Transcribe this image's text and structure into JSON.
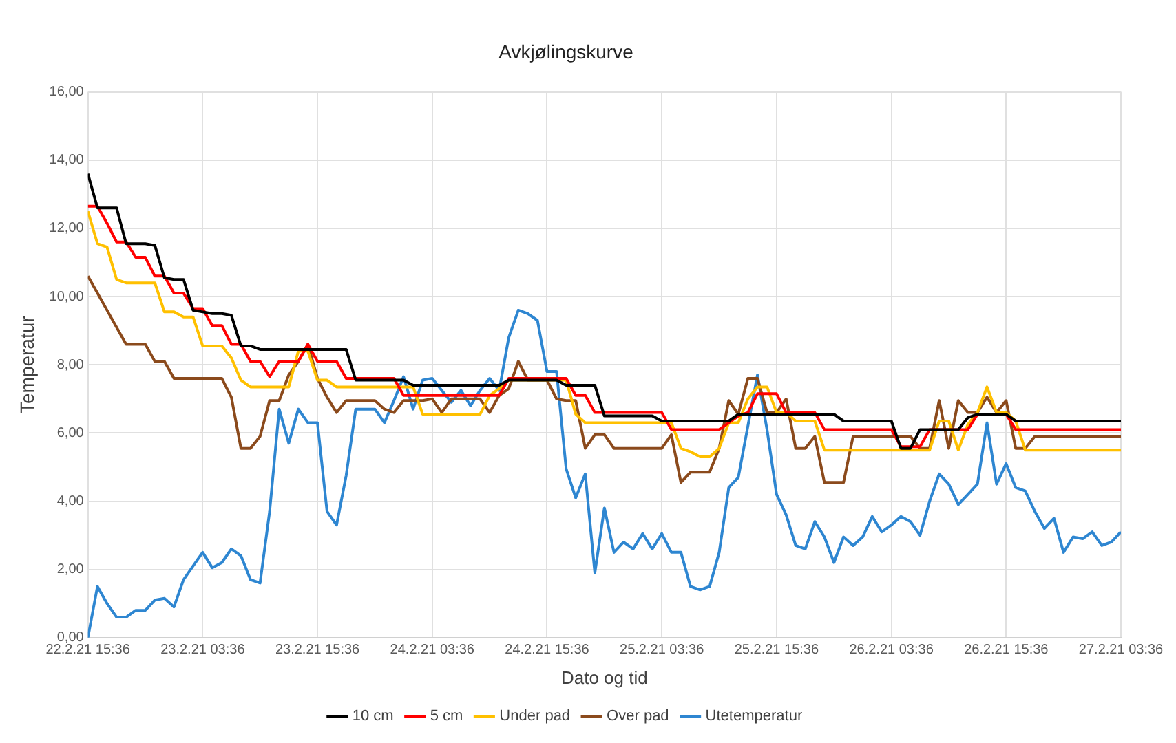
{
  "chart_data": {
    "type": "line",
    "title": "Avkjølingskurve",
    "xlabel": "Dato og tid",
    "ylabel": "Temperatur",
    "x": [
      "--02-22T15:36",
      "--02-22T16:36",
      "--02-22T17:36",
      "--02-22T18:36",
      "--02-22T19:36",
      "--02-22T20:36",
      "--02-22T21:36",
      "--02-22T22:36",
      "--02-22T23:36",
      "--02-23T00:36",
      "--02-23T01:36",
      "--02-23T02:36",
      "--02-23T03:36",
      "--02-23T04:36",
      "--02-23T05:36",
      "--02-23T06:36",
      "--02-23T07:36",
      "--02-23T08:36",
      "--02-23T09:36",
      "--02-23T10:36",
      "--02-23T11:36",
      "--02-23T12:36",
      "--02-23T13:36",
      "--02-23T14:36",
      "--02-23T15:36",
      "--02-23T16:36",
      "--02-23T17:36",
      "--02-23T18:36",
      "--02-23T19:36",
      "--02-23T20:36",
      "--02-23T21:36",
      "--02-23T22:36",
      "--02-23T23:36",
      "--02-24T00:36",
      "--02-24T01:36",
      "--02-24T02:36",
      "--02-24T03:36",
      "--02-24T04:36",
      "--02-24T05:36",
      "--02-24T06:36",
      "--02-24T07:36",
      "--02-24T08:36",
      "--02-24T09:36",
      "--02-24T10:36",
      "--02-24T11:36",
      "--02-24T12:36",
      "--02-24T13:36",
      "--02-24T14:36",
      "--02-24T15:36",
      "--02-24T16:36",
      "--02-24T17:36",
      "--02-24T18:36",
      "--02-24T19:36",
      "--02-24T20:36",
      "--02-24T21:36",
      "--02-24T22:36",
      "--02-24T23:36",
      "--02-25T00:36",
      "--02-25T01:36",
      "--02-25T02:36",
      "--02-25T03:36",
      "--02-25T04:36",
      "--02-25T05:36",
      "--02-25T06:36",
      "--02-25T07:36",
      "--02-25T08:36",
      "--02-25T09:36",
      "--02-25T10:36",
      "--02-25T11:36",
      "--02-25T12:36",
      "--02-25T13:36",
      "--02-25T14:36",
      "--02-25T15:36",
      "--02-25T16:36",
      "--02-25T17:36",
      "--02-25T18:36",
      "--02-25T19:36",
      "--02-25T20:36",
      "--02-25T21:36",
      "--02-25T22:36",
      "--02-25T23:36",
      "--02-26T00:36",
      "--02-26T01:36",
      "--02-26T02:36",
      "--02-26T03:36",
      "--02-26T04:36",
      "--02-26T05:36",
      "--02-26T06:36",
      "--02-26T07:36",
      "--02-26T08:36",
      "--02-26T09:36",
      "--02-26T10:36",
      "--02-26T11:36",
      "--02-26T12:36",
      "--02-26T13:36",
      "--02-26T14:36",
      "--02-26T15:36",
      "--02-26T16:36",
      "--02-26T17:36",
      "--02-26T18:36",
      "--02-26T19:36",
      "--02-26T20:36",
      "--02-26T21:36",
      "--02-26T22:36",
      "--02-26T23:36",
      "--02-27T00:36",
      "--02-27T01:36",
      "--02-27T02:36",
      "--02-27T03:36"
    ],
    "series": [
      {
        "name": "10 cm",
        "color": "#000000",
        "values": [
          13.6,
          12.6,
          12.6,
          12.6,
          11.55,
          11.55,
          11.55,
          11.5,
          10.55,
          10.5,
          10.5,
          9.6,
          9.55,
          9.5,
          9.5,
          9.45,
          8.55,
          8.55,
          8.45,
          8.45,
          8.45,
          8.45,
          8.45,
          8.45,
          8.45,
          8.45,
          8.45,
          8.45,
          7.55,
          7.55,
          7.55,
          7.55,
          7.55,
          7.55,
          7.4,
          7.4,
          7.4,
          7.4,
          7.4,
          7.4,
          7.4,
          7.4,
          7.4,
          7.4,
          7.55,
          7.55,
          7.55,
          7.55,
          7.55,
          7.55,
          7.4,
          7.4,
          7.4,
          7.4,
          6.5,
          6.5,
          6.5,
          6.5,
          6.5,
          6.5,
          6.35,
          6.35,
          6.35,
          6.35,
          6.35,
          6.35,
          6.35,
          6.35,
          6.55,
          6.55,
          6.55,
          6.55,
          6.55,
          6.55,
          6.55,
          6.55,
          6.55,
          6.55,
          6.55,
          6.35,
          6.35,
          6.35,
          6.35,
          6.35,
          6.35,
          5.55,
          5.55,
          6.1,
          6.1,
          6.1,
          6.1,
          6.1,
          6.45,
          6.55,
          6.55,
          6.55,
          6.55,
          6.35,
          6.35,
          6.35,
          6.35,
          6.35,
          6.35,
          6.35,
          6.35,
          6.35,
          6.35,
          6.35,
          6.35
        ]
      },
      {
        "name": "5 cm",
        "color": "#ff0000",
        "values": [
          12.65,
          12.65,
          12.15,
          11.6,
          11.6,
          11.15,
          11.15,
          10.6,
          10.6,
          10.1,
          10.1,
          9.65,
          9.65,
          9.15,
          9.15,
          8.6,
          8.6,
          8.1,
          8.1,
          7.65,
          8.1,
          8.1,
          8.1,
          8.6,
          8.1,
          8.1,
          8.1,
          7.6,
          7.6,
          7.6,
          7.6,
          7.6,
          7.6,
          7.1,
          7.1,
          7.1,
          7.1,
          7.1,
          7.1,
          7.1,
          7.1,
          7.1,
          7.1,
          7.1,
          7.6,
          7.6,
          7.6,
          7.6,
          7.6,
          7.6,
          7.6,
          7.1,
          7.1,
          6.6,
          6.6,
          6.6,
          6.6,
          6.6,
          6.6,
          6.6,
          6.6,
          6.1,
          6.1,
          6.1,
          6.1,
          6.1,
          6.1,
          6.3,
          6.5,
          6.6,
          7.15,
          7.15,
          7.15,
          6.6,
          6.6,
          6.6,
          6.6,
          6.1,
          6.1,
          6.1,
          6.1,
          6.1,
          6.1,
          6.1,
          6.1,
          5.6,
          5.6,
          5.6,
          6.1,
          6.1,
          6.1,
          6.1,
          6.1,
          6.55,
          6.55,
          6.55,
          6.55,
          6.1,
          6.1,
          6.1,
          6.1,
          6.1,
          6.1,
          6.1,
          6.1,
          6.1,
          6.1,
          6.1,
          6.1
        ]
      },
      {
        "name": "Under pad",
        "color": "#ffc000",
        "values": [
          12.5,
          11.55,
          11.45,
          10.5,
          10.4,
          10.4,
          10.4,
          10.4,
          9.55,
          9.55,
          9.4,
          9.4,
          8.55,
          8.55,
          8.55,
          8.2,
          7.55,
          7.35,
          7.35,
          7.35,
          7.35,
          7.35,
          8.4,
          8.4,
          7.55,
          7.55,
          7.35,
          7.35,
          7.35,
          7.35,
          7.35,
          7.35,
          7.35,
          7.35,
          7.35,
          6.55,
          6.55,
          6.55,
          6.55,
          6.55,
          6.55,
          6.55,
          7.1,
          7.3,
          7.55,
          7.55,
          7.55,
          7.55,
          7.55,
          7.55,
          7.55,
          6.55,
          6.3,
          6.3,
          6.3,
          6.3,
          6.3,
          6.3,
          6.3,
          6.3,
          6.3,
          6.3,
          5.55,
          5.45,
          5.3,
          5.3,
          5.55,
          6.3,
          6.3,
          7.0,
          7.35,
          7.35,
          6.6,
          6.6,
          6.35,
          6.35,
          6.35,
          5.5,
          5.5,
          5.5,
          5.5,
          5.5,
          5.5,
          5.5,
          5.5,
          5.5,
          5.5,
          5.5,
          5.5,
          6.35,
          6.35,
          5.5,
          6.25,
          6.6,
          7.35,
          6.6,
          6.6,
          6.35,
          5.5,
          5.5,
          5.5,
          5.5,
          5.5,
          5.5,
          5.5,
          5.5,
          5.5,
          5.5,
          5.5
        ]
      },
      {
        "name": "Over pad",
        "color": "#8b4a1c",
        "values": [
          10.6,
          10.1,
          9.6,
          9.1,
          8.6,
          8.6,
          8.6,
          8.1,
          8.1,
          7.6,
          7.6,
          7.6,
          7.6,
          7.6,
          7.6,
          7.05,
          5.55,
          5.55,
          5.9,
          6.95,
          6.95,
          7.7,
          8.1,
          8.6,
          7.6,
          7.05,
          6.6,
          6.95,
          6.95,
          6.95,
          6.95,
          6.7,
          6.6,
          6.95,
          6.95,
          6.95,
          7.0,
          6.6,
          7.0,
          7.0,
          7.0,
          7.0,
          6.6,
          7.1,
          7.3,
          8.1,
          7.55,
          7.55,
          7.55,
          7.0,
          6.95,
          6.95,
          5.55,
          5.95,
          5.95,
          5.55,
          5.55,
          5.55,
          5.55,
          5.55,
          5.55,
          5.95,
          4.55,
          4.85,
          4.85,
          4.85,
          5.55,
          6.95,
          6.55,
          7.6,
          7.6,
          6.6,
          6.6,
          7.0,
          5.55,
          5.55,
          5.9,
          4.55,
          4.55,
          4.55,
          5.9,
          5.9,
          5.9,
          5.9,
          5.9,
          5.9,
          5.9,
          5.55,
          5.55,
          6.95,
          5.55,
          6.95,
          6.6,
          6.6,
          7.05,
          6.6,
          6.95,
          5.55,
          5.55,
          5.9,
          5.9,
          5.9,
          5.9,
          5.9,
          5.9,
          5.9,
          5.9,
          5.9,
          5.9
        ]
      },
      {
        "name": "Utetemperatur",
        "color": "#2e86d1",
        "values": [
          0,
          1.5,
          1.0,
          0.6,
          0.6,
          0.8,
          0.8,
          1.1,
          1.15,
          0.9,
          1.7,
          2.1,
          2.5,
          2.05,
          2.2,
          2.6,
          2.4,
          1.7,
          1.6,
          3.7,
          6.7,
          5.7,
          6.7,
          6.3,
          6.3,
          3.7,
          3.3,
          4.75,
          6.7,
          6.7,
          6.7,
          6.3,
          6.95,
          7.65,
          6.7,
          7.55,
          7.6,
          7.25,
          6.9,
          7.25,
          6.8,
          7.25,
          7.6,
          7.25,
          8.8,
          9.6,
          9.5,
          9.3,
          7.8,
          7.8,
          4.95,
          4.1,
          4.8,
          1.9,
          3.8,
          2.5,
          2.8,
          2.6,
          3.05,
          2.6,
          3.05,
          2.5,
          2.5,
          1.5,
          1.4,
          1.5,
          2.5,
          4.4,
          4.7,
          6.2,
          7.7,
          6.1,
          4.2,
          3.6,
          2.7,
          2.6,
          3.4,
          2.95,
          2.2,
          2.95,
          2.7,
          2.95,
          3.55,
          3.1,
          3.3,
          3.55,
          3.4,
          3.0,
          4.0,
          4.8,
          4.5,
          3.9,
          4.2,
          4.5,
          6.3,
          4.5,
          5.1,
          4.4,
          4.3,
          3.7,
          3.2,
          3.5,
          2.5,
          2.95,
          2.9,
          3.1,
          2.7,
          2.8,
          3.1
        ]
      }
    ],
    "xlim": [
      "--02-22T15:36",
      "--02-27T03:36"
    ],
    "xticks": [
      {
        "value": "--02-22T15:36",
        "label": "22.2.21 15:36"
      },
      {
        "value": "--02-23T03:36",
        "label": "23.2.21 03:36"
      },
      {
        "value": "--02-23T15:36",
        "label": "23.2.21 15:36"
      },
      {
        "value": "--02-24T03:36",
        "label": "24.2.21 03:36"
      },
      {
        "value": "--02-24T15:36",
        "label": "24.2.21 15:36"
      },
      {
        "value": "--02-25T03:36",
        "label": "25.2.21 03:36"
      },
      {
        "value": "--02-25T15:36",
        "label": "25.2.21 15:36"
      },
      {
        "value": "--02-26T03:36",
        "label": "26.2.21 03:36"
      },
      {
        "value": "--02-26T15:36",
        "label": "26.2.21 15:36"
      },
      {
        "value": "--02-27T03:36",
        "label": "27.2.21 03:36"
      }
    ],
    "ylim": [
      0,
      16
    ],
    "yticks": [
      {
        "value": 0,
        "label": "0,00"
      },
      {
        "value": 2,
        "label": "2,00"
      },
      {
        "value": 4,
        "label": "4,00"
      },
      {
        "value": 6,
        "label": "6,00"
      },
      {
        "value": 8,
        "label": "8,00"
      },
      {
        "value": 10,
        "label": "10,00"
      },
      {
        "value": 12,
        "label": "12,00"
      },
      {
        "value": 14,
        "label": "14,00"
      },
      {
        "value": 16,
        "label": "16,00"
      }
    ],
    "grid": true,
    "legend": "bottom",
    "marker": "none",
    "line_style": "solid"
  }
}
